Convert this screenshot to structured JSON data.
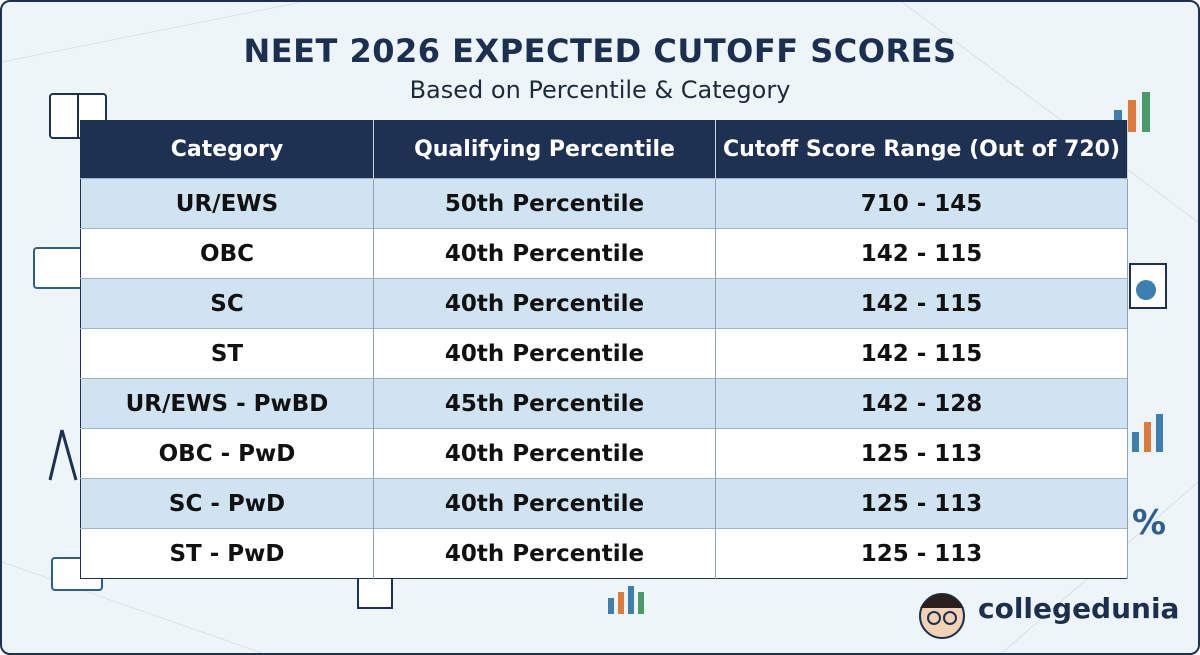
{
  "header": {
    "title": "NEET 2026 EXPECTED CUTOFF SCORES",
    "subtitle": "Based on Percentile & Category"
  },
  "table": {
    "columns": [
      "Category",
      "Qualifying Percentile",
      "Cutoff Score Range (Out of 720)"
    ],
    "rows": [
      [
        "UR/EWS",
        "50th Percentile",
        "710 - 145"
      ],
      [
        "OBC",
        "40th Percentile",
        "142 - 115"
      ],
      [
        "SC",
        "40th Percentile",
        "142 - 115"
      ],
      [
        "ST",
        "40th Percentile",
        "142 - 115"
      ],
      [
        "UR/EWS - PwBD",
        "45th Percentile",
        "142 - 128"
      ],
      [
        "OBC - PwD",
        "40th Percentile",
        "125 - 113"
      ],
      [
        "SC - PwD",
        "40th Percentile",
        "125 - 113"
      ],
      [
        "ST - PwD",
        "40th Percentile",
        "125 - 113"
      ]
    ]
  },
  "logo": {
    "text": "collegedunia"
  }
}
